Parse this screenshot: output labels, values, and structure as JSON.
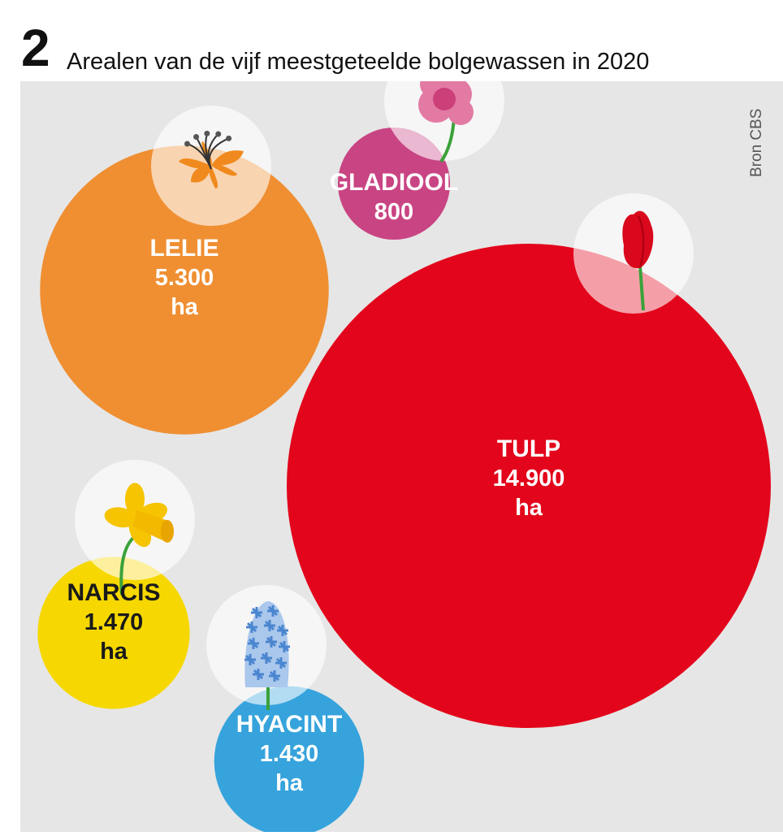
{
  "header": {
    "number": "2",
    "title": "Arealen van de vijf meestgeteelde bolgewassen in 2020"
  },
  "source": "Bron CBS",
  "colors": {
    "background": "#e6e6e6",
    "tulp": "#e3051b",
    "lelie": "#ef8f32",
    "gladiool": "#c94483",
    "narcis": "#f6d800",
    "hyacint": "#36a3dc"
  },
  "chart_data": {
    "type": "bubble",
    "unit": "ha",
    "items": [
      {
        "name": "TULP",
        "value": 14900,
        "value_label": "14.900",
        "unit_label": "ha",
        "icon": "tulip-icon",
        "color": "#e3051b"
      },
      {
        "name": "LELIE",
        "value": 5300,
        "value_label": "5.300",
        "unit_label": "ha",
        "icon": "lily-icon",
        "color": "#ef8f32"
      },
      {
        "name": "NARCIS",
        "value": 1470,
        "value_label": "1.470",
        "unit_label": "ha",
        "icon": "daffodil-icon",
        "color": "#f6d800"
      },
      {
        "name": "HYACINT",
        "value": 1430,
        "value_label": "1.430",
        "unit_label": "ha",
        "icon": "hyacinth-icon",
        "color": "#36a3dc"
      },
      {
        "name": "GLADIOOL",
        "value": 800,
        "value_label": "800",
        "unit_label": "",
        "icon": "gladiolus-icon",
        "color": "#c94483"
      }
    ]
  }
}
